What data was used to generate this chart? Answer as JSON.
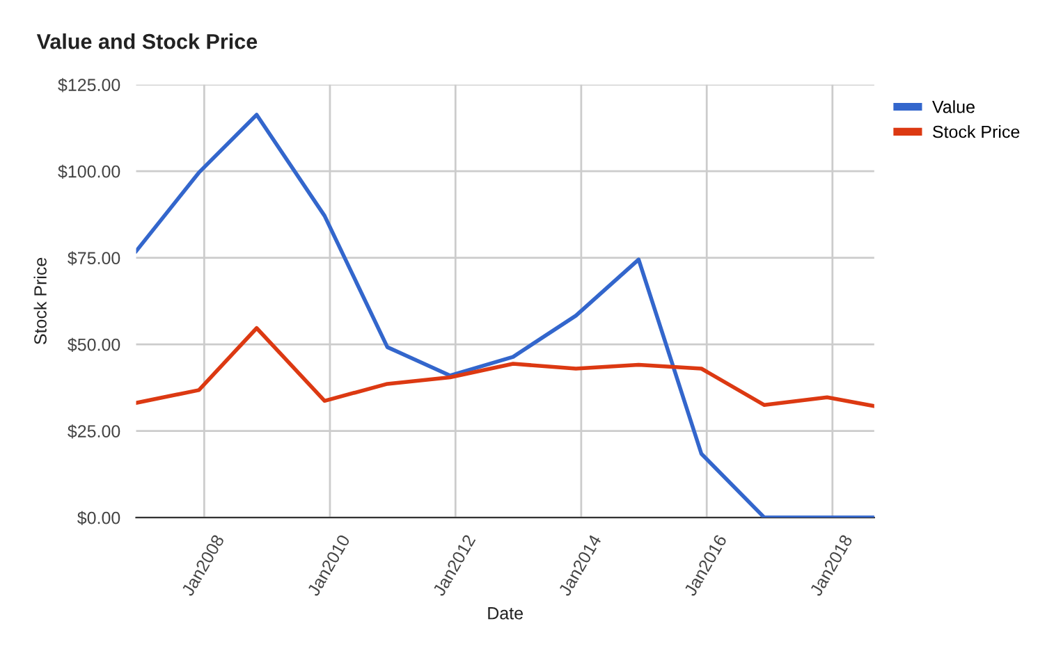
{
  "chart_data": {
    "type": "line",
    "title": "Value and Stock Price",
    "xlabel": "Date",
    "ylabel": "Stock Price",
    "x": [
      "2006-12",
      "2007-12",
      "2008-11",
      "2009-12",
      "2010-12",
      "2011-12",
      "2012-12",
      "2013-12",
      "2014-12",
      "2015-12",
      "2016-12",
      "2017-12",
      "2018-09"
    ],
    "series": [
      {
        "name": "Value",
        "color": "#3366cc",
        "values": [
          76.9,
          99.6,
          116.3,
          87.1,
          49.2,
          41.0,
          46.4,
          58.3,
          74.5,
          18.4,
          0,
          0,
          0
        ]
      },
      {
        "name": "Stock Price",
        "color": "#dc3912",
        "values": [
          33.1,
          36.8,
          54.7,
          33.7,
          38.6,
          40.5,
          44.4,
          43.0,
          44.1,
          43.0,
          32.5,
          34.7,
          32.2
        ]
      }
    ],
    "xlim": [
      "2006-12",
      "2018-09"
    ],
    "xticks": [
      {
        "value": "2008-01",
        "label": "Jan2008"
      },
      {
        "value": "2010-01",
        "label": "Jan2010"
      },
      {
        "value": "2012-01",
        "label": "Jan2012"
      },
      {
        "value": "2014-01",
        "label": "Jan2014"
      },
      {
        "value": "2016-01",
        "label": "Jan2016"
      },
      {
        "value": "2018-01",
        "label": "Jan2018"
      }
    ],
    "ylim": [
      0,
      125
    ],
    "yticks": [
      {
        "value": 0,
        "label": "$0.00"
      },
      {
        "value": 25,
        "label": "$25.00"
      },
      {
        "value": 50,
        "label": "$50.00"
      },
      {
        "value": 75,
        "label": "$75.00"
      },
      {
        "value": 100,
        "label": "$100.00"
      },
      {
        "value": 125,
        "label": "$125.00"
      }
    ],
    "grid": true,
    "legend": "right",
    "marker": "none",
    "line_style": "solid"
  }
}
